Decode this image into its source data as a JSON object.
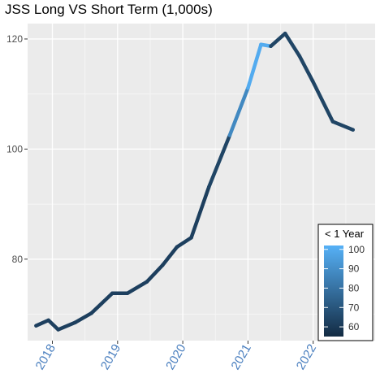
{
  "chart_data": {
    "type": "line",
    "title": "JSS Long VS Short Term (1,000s)",
    "xlabel": "",
    "ylabel": "",
    "x_ticks": [
      "2018",
      "2019",
      "2020",
      "2021",
      "2022"
    ],
    "y_ticks": [
      80,
      100,
      120
    ],
    "xlim": [
      2017.62,
      2022.95
    ],
    "ylim": [
      65.2,
      122.8
    ],
    "grid": true,
    "x": [
      2017.75,
      2017.94,
      2018.09,
      2018.35,
      2018.6,
      2018.92,
      2019.15,
      2019.45,
      2019.69,
      2019.91,
      2020.13,
      2020.4,
      2020.72,
      2021.0,
      2021.2,
      2021.35,
      2021.57,
      2021.79,
      2021.99,
      2022.3,
      2022.61
    ],
    "y": [
      67.9,
      68.9,
      67.2,
      68.5,
      70.2,
      73.8,
      73.8,
      75.9,
      78.9,
      82.2,
      83.9,
      93.1,
      102.5,
      111.1,
      119.0,
      118.7,
      121.0,
      116.9,
      112.4,
      105.0,
      103.5
    ],
    "color_values": [
      62,
      62,
      62,
      62,
      62,
      62,
      62,
      62,
      62,
      62,
      62,
      64,
      88,
      100,
      100,
      64,
      64,
      64,
      64,
      64,
      64
    ],
    "legend": {
      "title": "< 1 Year",
      "position": "bottom-right",
      "ticks": [
        100,
        90,
        80,
        70,
        60
      ],
      "range": [
        55,
        102
      ],
      "color_low": "#132b43",
      "color_high": "#56b1f7"
    },
    "colors": {
      "panel_background": "#ebebeb",
      "grid_major": "#ffffff",
      "grid_minor": "#f5f5f5",
      "x_tick_label": "#4a7fbf"
    }
  }
}
